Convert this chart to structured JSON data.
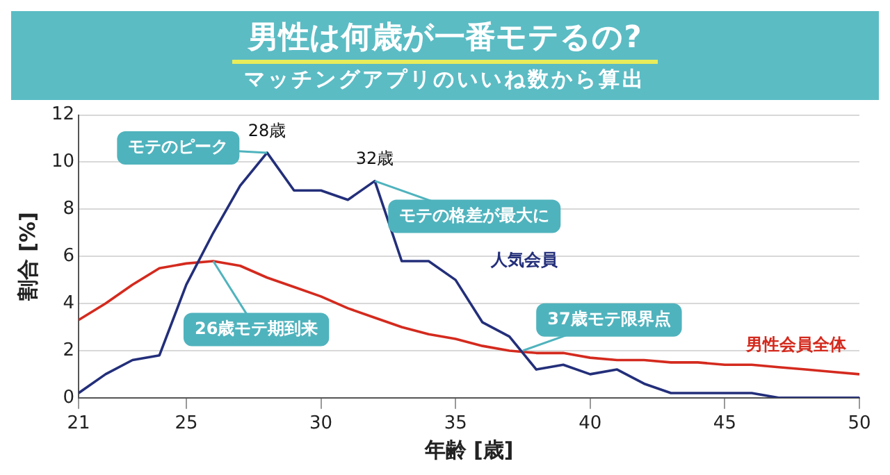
{
  "chart_data": {
    "type": "line",
    "title": "男性は何歳が一番モテるの?",
    "subtitle": "マッチングアプリのいいね数から算出",
    "xlabel": "年齢 [歳]",
    "ylabel": "割合 [%]",
    "x": [
      21,
      22,
      23,
      24,
      25,
      26,
      27,
      28,
      29,
      30,
      31,
      32,
      33,
      34,
      35,
      36,
      37,
      38,
      39,
      40,
      41,
      42,
      43,
      44,
      45,
      46,
      47,
      48,
      49,
      50
    ],
    "series": [
      {
        "name": "人気会員",
        "color": "#232f7a",
        "values": [
          0.2,
          1.0,
          1.6,
          1.8,
          4.8,
          7.0,
          9.0,
          10.4,
          8.8,
          8.8,
          8.4,
          9.2,
          5.8,
          5.8,
          5.0,
          3.2,
          2.6,
          1.2,
          1.4,
          1.0,
          1.2,
          0.6,
          0.2,
          0.2,
          0.2,
          0.2,
          0,
          0,
          0,
          0
        ]
      },
      {
        "name": "男性会員全体",
        "color": "#d42a1e",
        "values": [
          3.3,
          4.0,
          4.8,
          5.5,
          5.7,
          5.8,
          5.6,
          5.1,
          4.7,
          4.3,
          3.8,
          3.4,
          3.0,
          2.7,
          2.5,
          2.2,
          2.0,
          1.9,
          1.9,
          1.7,
          1.6,
          1.6,
          1.5,
          1.5,
          1.4,
          1.4,
          1.3,
          1.2,
          1.1,
          1.0
        ]
      }
    ],
    "xlim": [
      21,
      50
    ],
    "xticks": [
      21,
      25,
      30,
      35,
      40,
      45,
      50
    ],
    "ylim": [
      0,
      12
    ],
    "yticks": [
      0,
      2,
      4,
      6,
      8,
      10,
      12
    ],
    "grid": "y",
    "legend": false,
    "annotations": [
      {
        "text": "28歳",
        "x": 28,
        "y": 10.4
      },
      {
        "text": "32歳",
        "x": 32,
        "y": 9.2
      },
      {
        "text": "モテのピーク",
        "x": 28,
        "y": 10.4
      },
      {
        "text": "モテの格差が最大に",
        "x": 32,
        "y": 9.2
      },
      {
        "text": "26歳モテ期到来",
        "x": 26,
        "y": 5.8
      },
      {
        "text": "37歳モテ限界点",
        "x": 37.5,
        "y": 2.0
      }
    ]
  }
}
